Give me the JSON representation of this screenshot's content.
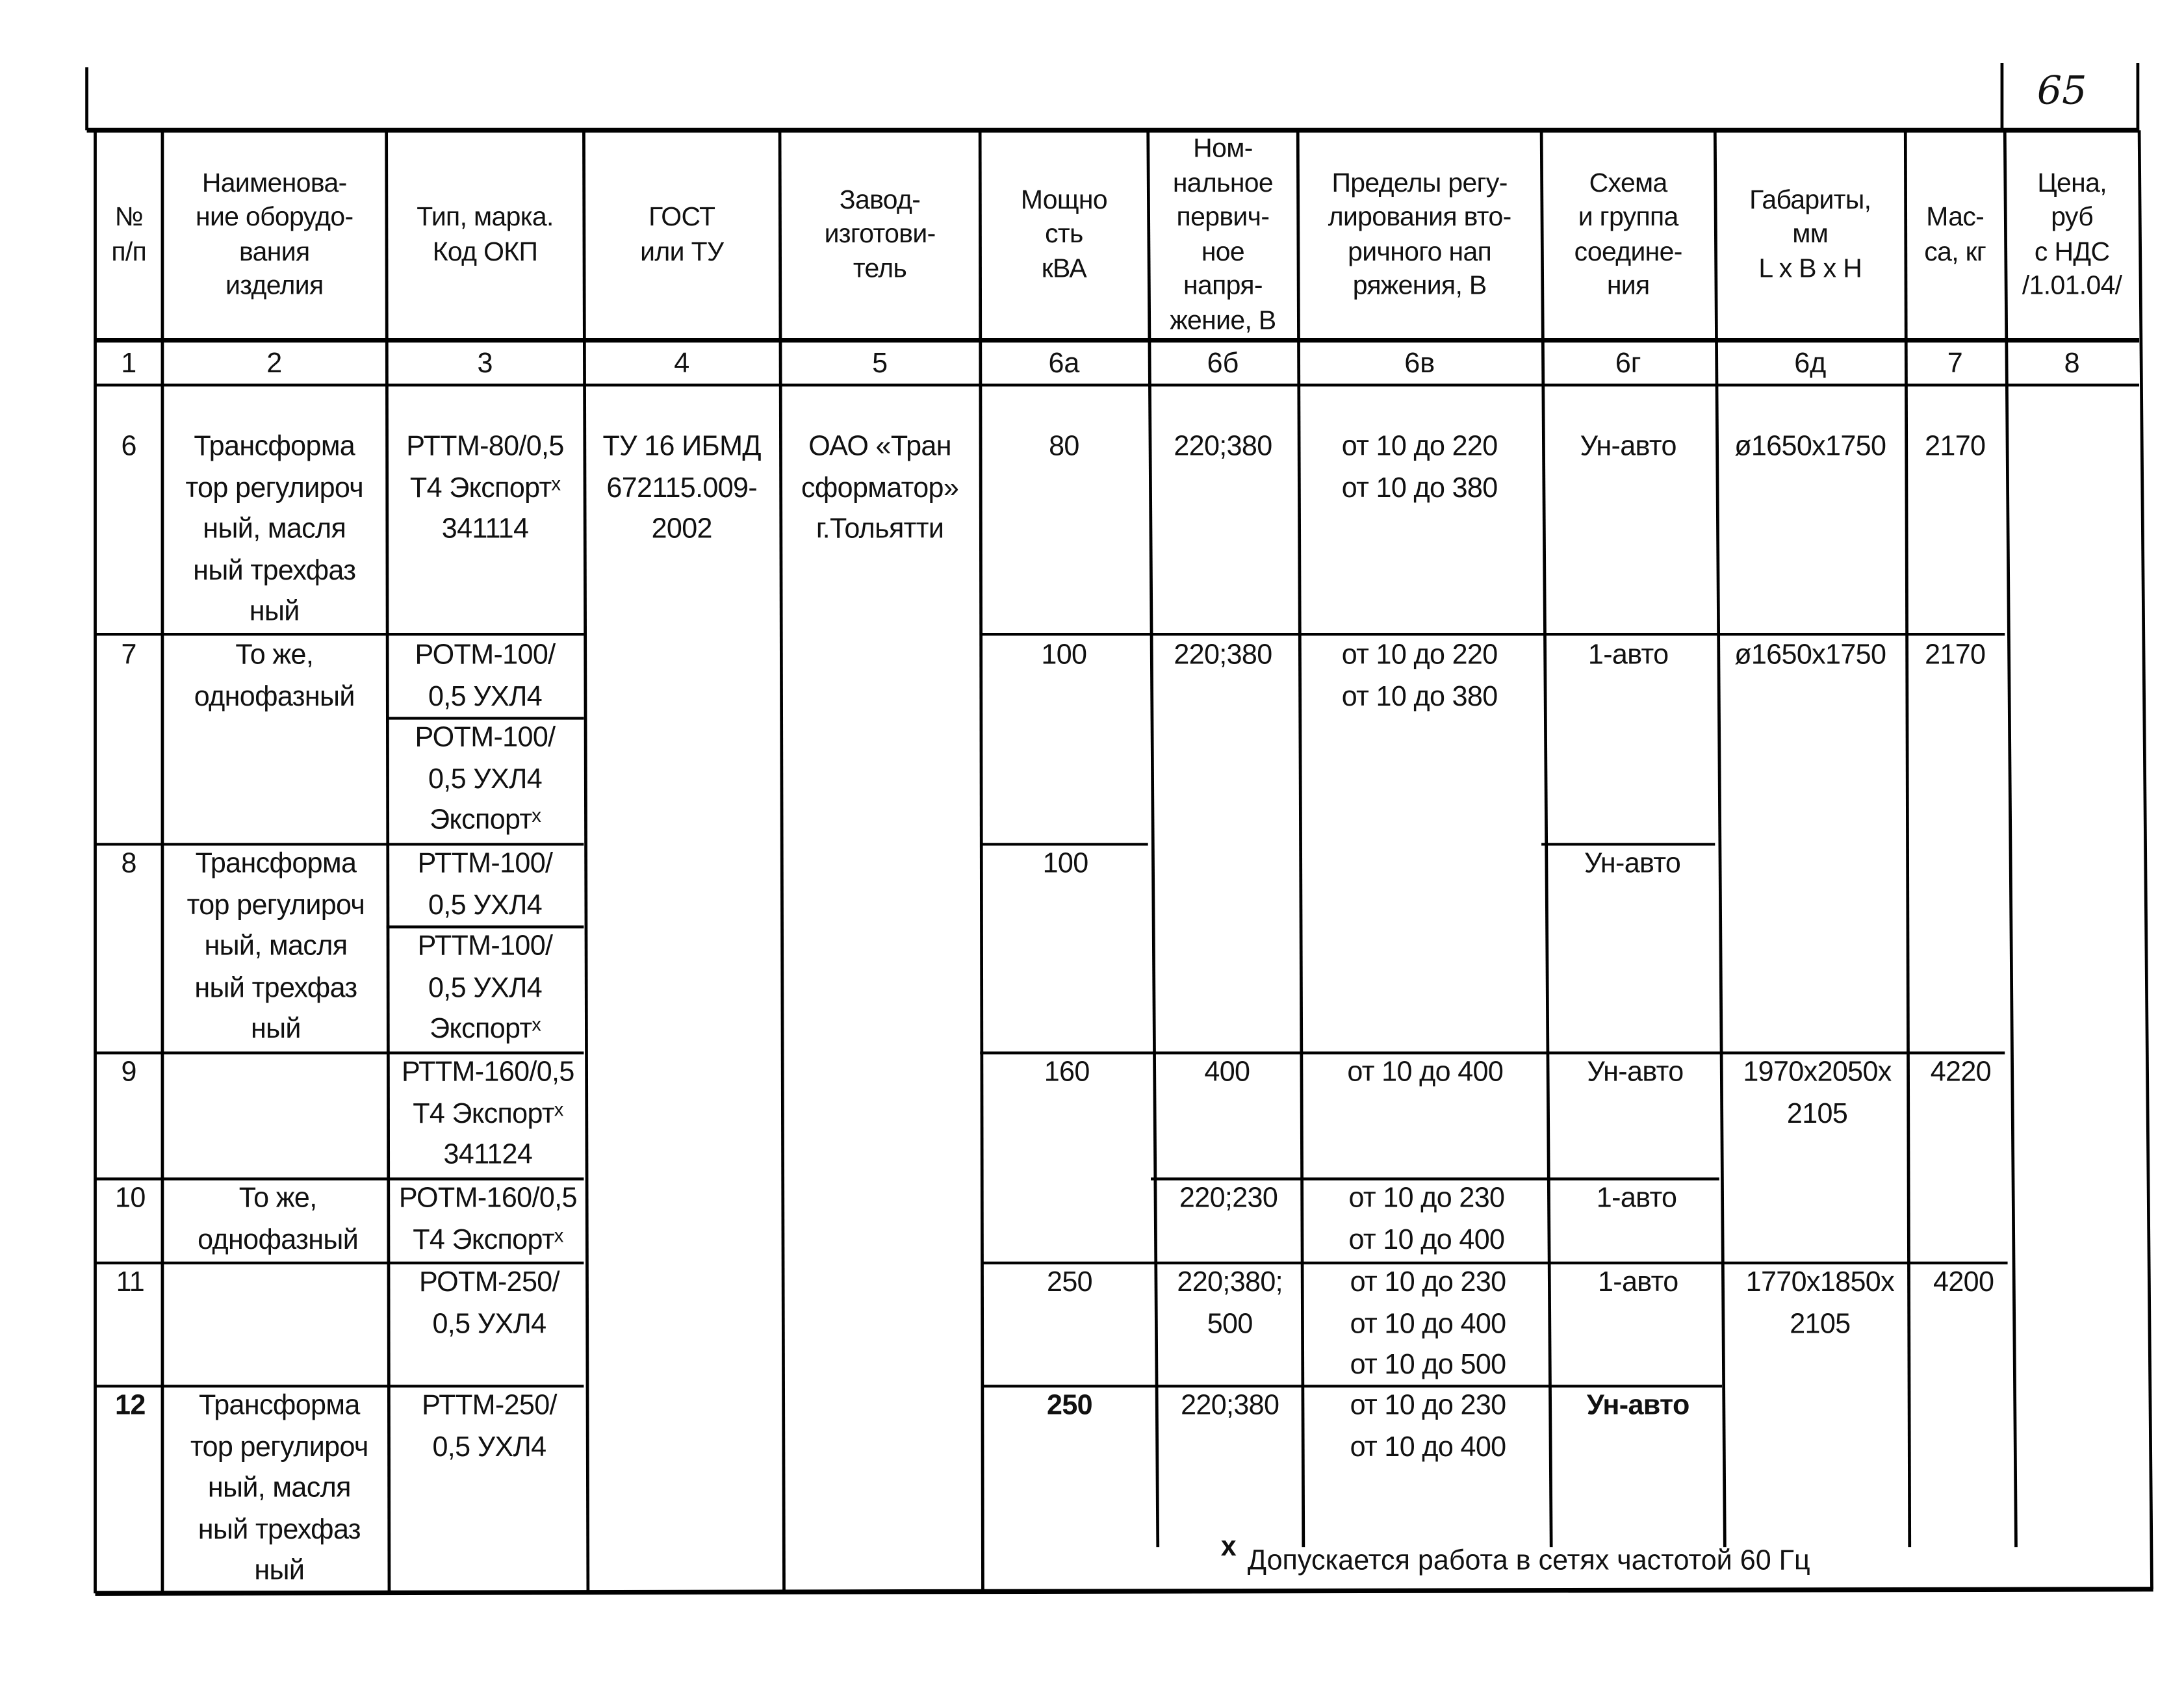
{
  "page_number": "65",
  "header": {
    "columns": [
      "№\nп/п",
      "Наименова-\nние оборудо-\nвания\nизделия",
      "Тип, марка.\nКод ОКП",
      "ГОСТ\nили ТУ",
      "Завод-\nизготови-\nтель",
      "Мощно\nсть\nкВА",
      "Ном-\nнальное\nпервич-\nное\nнапря-\nжение, В",
      "Пределы регу-\nлирования вто-\nричного нап\nряжения, В",
      "Схема\nи группа\nсоедине-\nния",
      "Габариты,\nмм\nL x B x H",
      "Мас-\nса, кг",
      "Цена,\nруб\nс НДС\n/1.01.04/"
    ],
    "numbers": [
      "1",
      "2",
      "3",
      "4",
      "5",
      "6а",
      "6б",
      "6в",
      "6г",
      "6д",
      "7",
      "8"
    ]
  },
  "common": {
    "gost": "ТУ 16 ИБМД\n672115.009-\n2002",
    "factory": "ОАО «Тран\nсформатор»\nг.Тольятти"
  },
  "rows": [
    {
      "no": "6",
      "name": "Трансформа\nтор регулироч\nный, масля\nный трехфаз\nный",
      "type": [
        "РТТМ-80/0,5\nТ4 Экспортˣ\n341114"
      ],
      "power": "80",
      "primary": "220;380",
      "regulation": "от 10 до 220\nот 10 до 380",
      "scheme": "Ун-авто",
      "dims": "ø1650x1750",
      "mass": "2170"
    },
    {
      "no": "7",
      "name": "То же,\nоднофазный",
      "type": [
        "РОТМ-100/\n0,5 УХЛ4",
        "РОТМ-100/\n0,5 УХЛ4\nЭкспортˣ"
      ],
      "power": "100",
      "primary": "220;380",
      "regulation": "от 10 до 220\nот 10 до 380",
      "scheme": "1-авто",
      "dims": "ø1650x1750",
      "mass": "2170"
    },
    {
      "no": "8",
      "name": "Трансформа\nтор регулироч\nный, масля\nный трехфаз\nный",
      "type": [
        "РТТМ-100/\n0,5 УХЛ4",
        "РТТМ-100/\n0,5 УХЛ4\nЭкспортˣ"
      ],
      "power": "100",
      "scheme": "Ун-авто"
    },
    {
      "no": "9",
      "type": [
        "РТТМ-160/0,5\nТ4 Экспортˣ\n341124"
      ],
      "power": "160",
      "primary": "400",
      "regulation": "от 10 до 400",
      "scheme": "Ун-авто",
      "dims": "1970x2050x\n2105",
      "mass": "4220"
    },
    {
      "no": "10",
      "name": "То же,\nоднофазный",
      "type": [
        "РОТМ-160/0,5\nТ4 Экспортˣ"
      ],
      "primary": "220;230",
      "regulation": "от 10 до 230\nот 10 до 400",
      "scheme": "1-авто"
    },
    {
      "no": "11",
      "type": [
        "РОТМ-250/\n0,5 УХЛ4"
      ],
      "power": "250",
      "primary": "220;380;\n500",
      "regulation": "от 10 до 230\nот 10 до 400\nот 10 до 500",
      "scheme": "1-авто",
      "dims": "1770x1850x\n2105",
      "mass": "4200"
    },
    {
      "no": "12",
      "name": "Трансформа\nтор регулироч\nный, масля\nный трехфаз\nный",
      "type": [
        "РТТМ-250/\n0,5 УХЛ4"
      ],
      "power": "250",
      "primary": "220;380",
      "regulation": "от 10 до 230\nот 10 до 400",
      "scheme": "Ун-авто"
    }
  ],
  "footnote": {
    "mark": "x",
    "text": "Допускается работа в сетях частотой 60 Гц"
  }
}
